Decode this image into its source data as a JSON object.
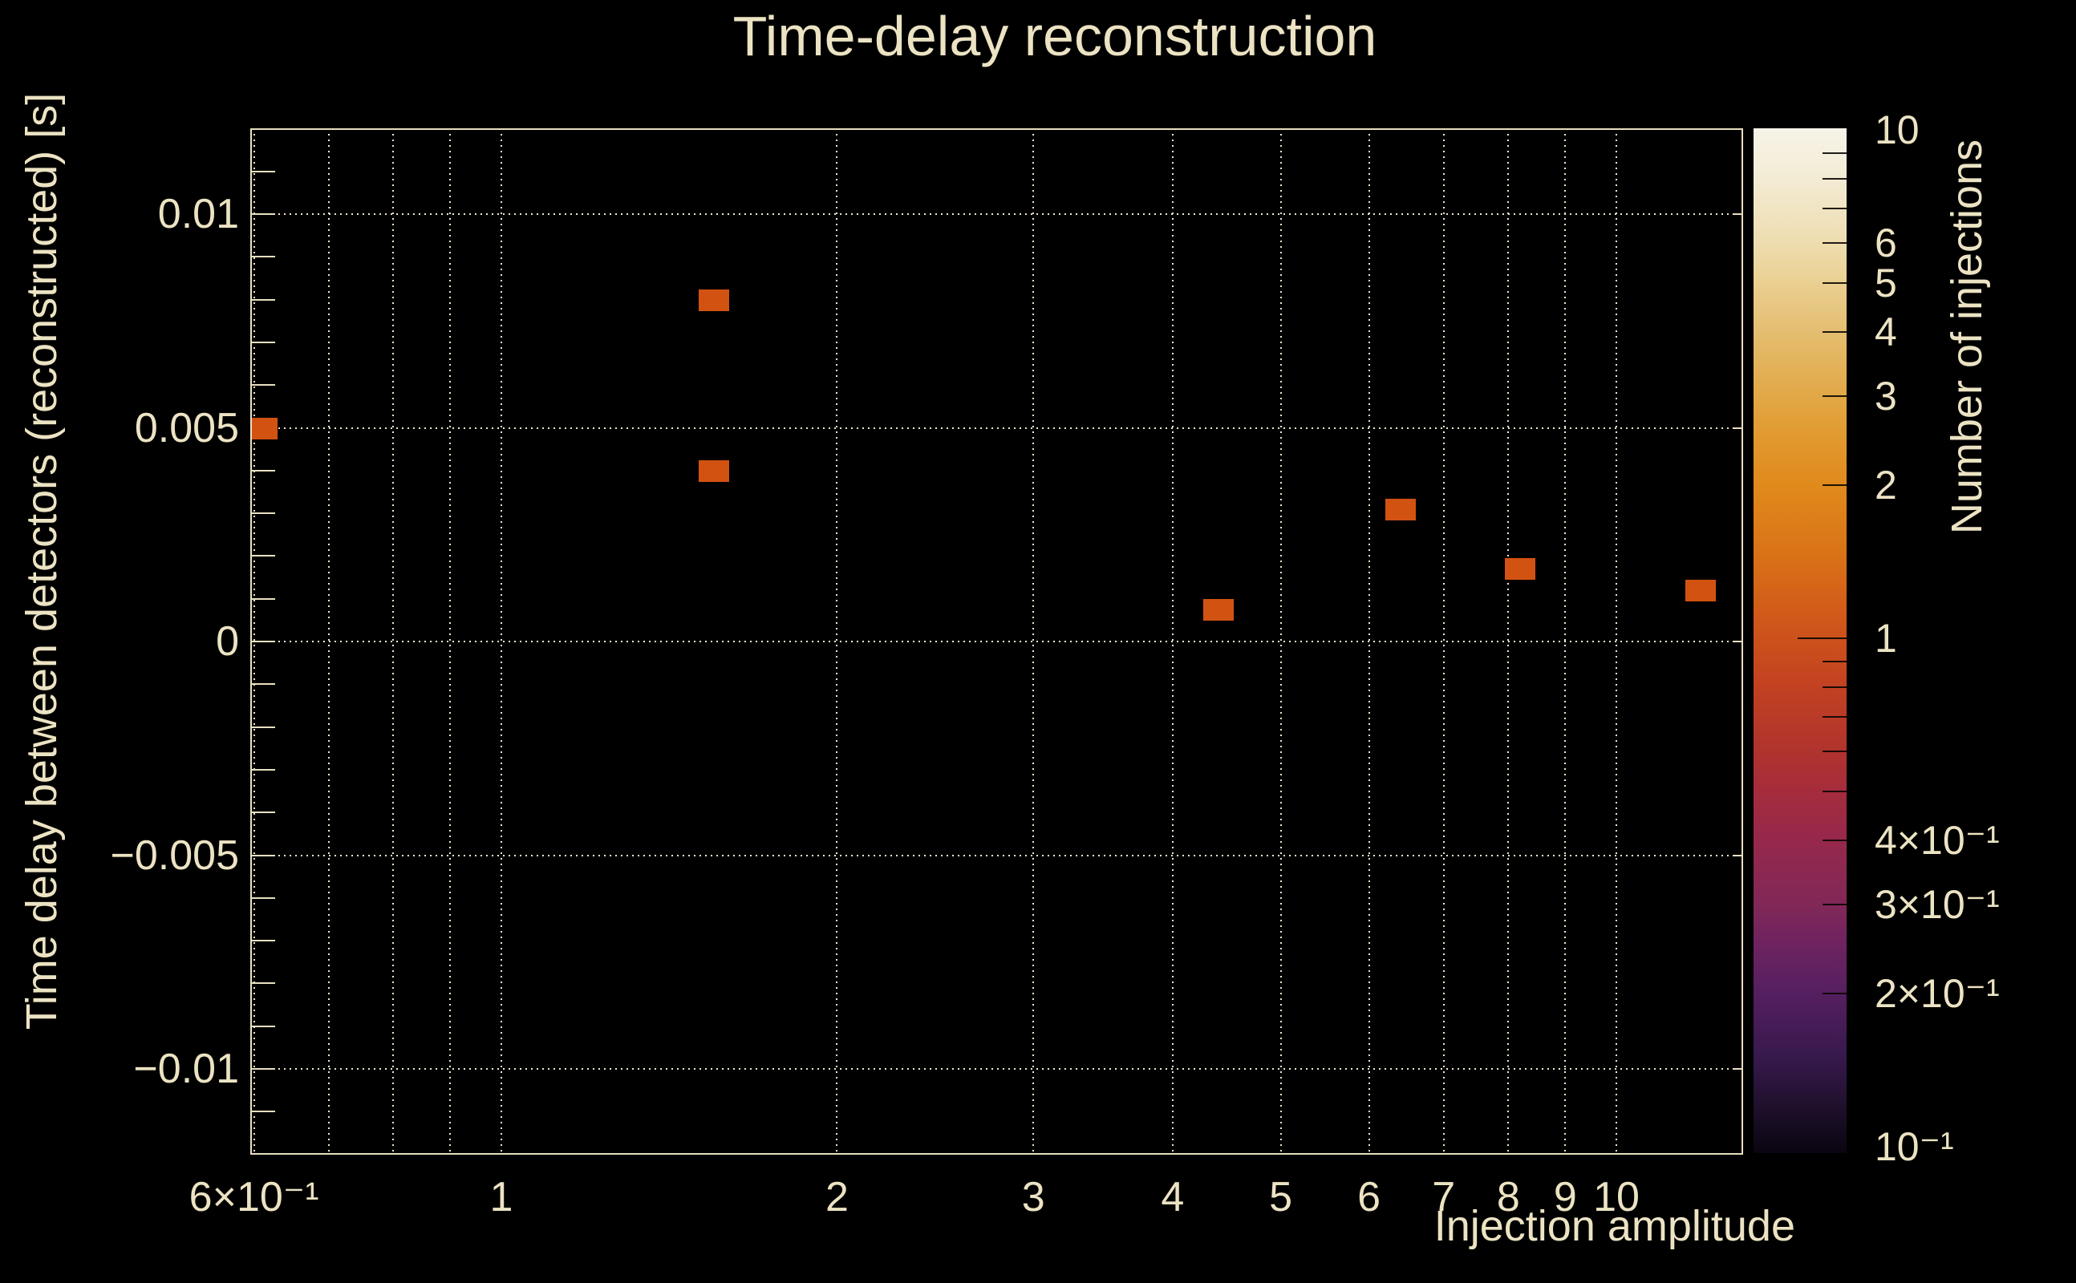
{
  "style": {
    "background": "#000000",
    "text_color": "#ece3c3",
    "grid_color": "#efe7cd",
    "frame_color": "#e9dfc0",
    "bin_color": "#d25212",
    "colorbar_tick_color": "#0a0602"
  },
  "chart_data": {
    "type": "heatmap",
    "title": "Time-delay reconstruction",
    "xlabel": "Injection amplitude",
    "ylabel": "Time delay between detectors (reconstructed) [s]",
    "zlabel": "Number of injections",
    "x_scale": "log",
    "x_range": [
      0.59,
      13.0
    ],
    "y_range": [
      -0.012,
      0.012
    ],
    "z_scale": "log",
    "z_range": [
      0.1,
      10
    ],
    "grid": true,
    "legend_position": "right-colorbar",
    "x_gridlines": [
      0.6,
      0.7,
      0.8,
      0.9,
      1,
      2,
      3,
      4,
      5,
      6,
      7,
      8,
      9,
      10
    ],
    "x_tick_labels": [
      {
        "v": 0.6,
        "label": "6×10⁻¹"
      },
      {
        "v": 1,
        "label": "1"
      },
      {
        "v": 2,
        "label": "2"
      },
      {
        "v": 3,
        "label": "3"
      },
      {
        "v": 4,
        "label": "4"
      },
      {
        "v": 5,
        "label": "5"
      },
      {
        "v": 6,
        "label": "6"
      },
      {
        "v": 7,
        "label": "7"
      },
      {
        "v": 8,
        "label": "8"
      },
      {
        "v": 9,
        "label": "9"
      },
      {
        "v": 10,
        "label": "10"
      }
    ],
    "y_gridlines": [
      -0.01,
      -0.005,
      0,
      0.005,
      0.01
    ],
    "y_tick_labels": [
      {
        "v": 0.01,
        "label": "0.01"
      },
      {
        "v": 0.005,
        "label": "0.005"
      },
      {
        "v": 0,
        "label": "0"
      },
      {
        "v": -0.005,
        "label": "−0.005"
      },
      {
        "v": -0.01,
        "label": "−0.01"
      }
    ],
    "y_minor_tick_step": 0.001,
    "bins": [
      {
        "x": 0.61,
        "y": 0.005,
        "count": 1
      },
      {
        "x": 1.55,
        "y": 0.008,
        "count": 1
      },
      {
        "x": 1.55,
        "y": 0.004,
        "count": 1
      },
      {
        "x": 4.4,
        "y": 0.00075,
        "count": 1
      },
      {
        "x": 6.4,
        "y": 0.0031,
        "count": 1
      },
      {
        "x": 8.2,
        "y": 0.0017,
        "count": 1
      },
      {
        "x": 11.9,
        "y": 0.0012,
        "count": 1
      }
    ],
    "colorbar": {
      "labels": [
        {
          "v": 10,
          "label": "10"
        },
        {
          "v": 6,
          "label": "6"
        },
        {
          "v": 5,
          "label": "5"
        },
        {
          "v": 4,
          "label": "4"
        },
        {
          "v": 3,
          "label": "3"
        },
        {
          "v": 2,
          "label": "2"
        },
        {
          "v": 1,
          "label": "1"
        },
        {
          "v": 0.4,
          "label": "4×10⁻¹"
        },
        {
          "v": 0.3,
          "label": "3×10⁻¹"
        },
        {
          "v": 0.2,
          "label": "2×10⁻¹"
        },
        {
          "v": 0.1,
          "label": "10⁻¹"
        }
      ],
      "minor_ticks": [
        9,
        8,
        7,
        6,
        5,
        4,
        3,
        2,
        0.9,
        0.8,
        0.7,
        0.6,
        0.5,
        0.4,
        0.3,
        0.2
      ],
      "major_ticks": [
        1
      ],
      "gradient": [
        {
          "pos": 0.0,
          "color": "#f7f3e8"
        },
        {
          "pos": 0.0485,
          "color": "#f3ecd4"
        },
        {
          "pos": 0.111,
          "color": "#eeddb0"
        },
        {
          "pos": 0.15,
          "color": "#ead092"
        },
        {
          "pos": 0.199,
          "color": "#e4bd70"
        },
        {
          "pos": 0.2606,
          "color": "#e2a847"
        },
        {
          "pos": 0.299,
          "color": "#e19a30"
        },
        {
          "pos": 0.348,
          "color": "#e08a1c"
        },
        {
          "pos": 0.41,
          "color": "#da7517"
        },
        {
          "pos": 0.4577,
          "color": "#d46019"
        },
        {
          "pos": 0.4977,
          "color": "#cd511b"
        },
        {
          "pos": 0.5454,
          "color": "#c24122"
        },
        {
          "pos": 0.608,
          "color": "#b0332e"
        },
        {
          "pos": 0.647,
          "color": "#a52c3c"
        },
        {
          "pos": 0.6948,
          "color": "#96284c"
        },
        {
          "pos": 0.7575,
          "color": "#812857"
        },
        {
          "pos": 0.7966,
          "color": "#6e2360"
        },
        {
          "pos": 0.8443,
          "color": "#551f60"
        },
        {
          "pos": 0.9062,
          "color": "#37194d"
        },
        {
          "pos": 0.9546,
          "color": "#1f102c"
        },
        {
          "pos": 1.0,
          "color": "#0a0510"
        }
      ]
    }
  }
}
